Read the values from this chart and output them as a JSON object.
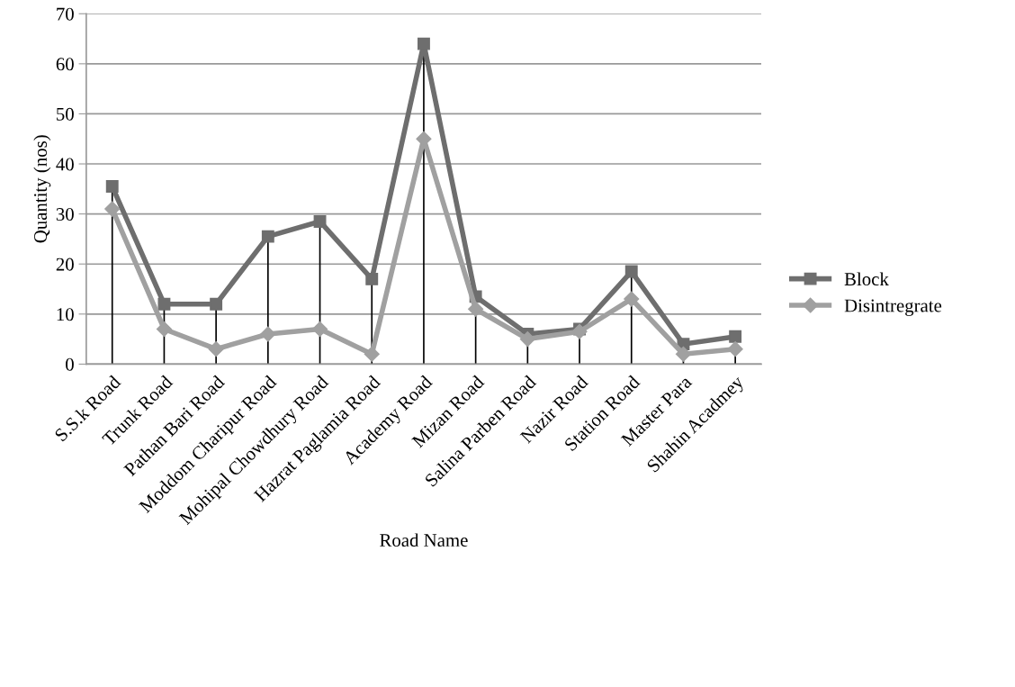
{
  "chart_data": {
    "type": "line",
    "xlabel": "Road Name",
    "ylabel": "Quantity (nos)",
    "categories": [
      "S.S.k Road",
      "Trunk Road",
      "Pathan Bari Road",
      "Moddom Charipur Road",
      "Mohipal Chowdhury Road",
      "Hazrat Paglamia Road",
      "Academy Road",
      "Mizan Road",
      "Salina Parben Road",
      "Nazir Road",
      "Station Road",
      "Master Para",
      "Shahin Acadmey"
    ],
    "series": [
      {
        "name": "Block",
        "color": "#6e6e6e",
        "marker": "square",
        "values": [
          35.5,
          12,
          12,
          25.5,
          28.5,
          17,
          64,
          13.5,
          6,
          7,
          18.5,
          4,
          5.5
        ],
        "errors": [
          [
            0,
            35.5
          ],
          [
            0,
            12
          ],
          [
            0,
            12
          ],
          [
            0,
            25.5
          ],
          [
            0,
            28.5
          ],
          [
            0,
            17
          ],
          [
            0,
            64
          ],
          [
            0,
            13.5
          ],
          [
            0,
            6
          ],
          [
            0,
            7
          ],
          [
            0,
            18.5
          ],
          [
            0,
            4
          ],
          [
            0,
            5.5
          ]
        ]
      },
      {
        "name": "Disintregrate",
        "color": "#a0a0a0",
        "marker": "diamond",
        "values": [
          31,
          7,
          3,
          6,
          7,
          2,
          45,
          11,
          5,
          6.5,
          13,
          2,
          3
        ]
      }
    ],
    "ylim": [
      0,
      70
    ],
    "yticks": [
      0,
      10,
      20,
      30,
      40,
      50,
      60,
      70
    ],
    "grid": "y",
    "legend": "right"
  }
}
